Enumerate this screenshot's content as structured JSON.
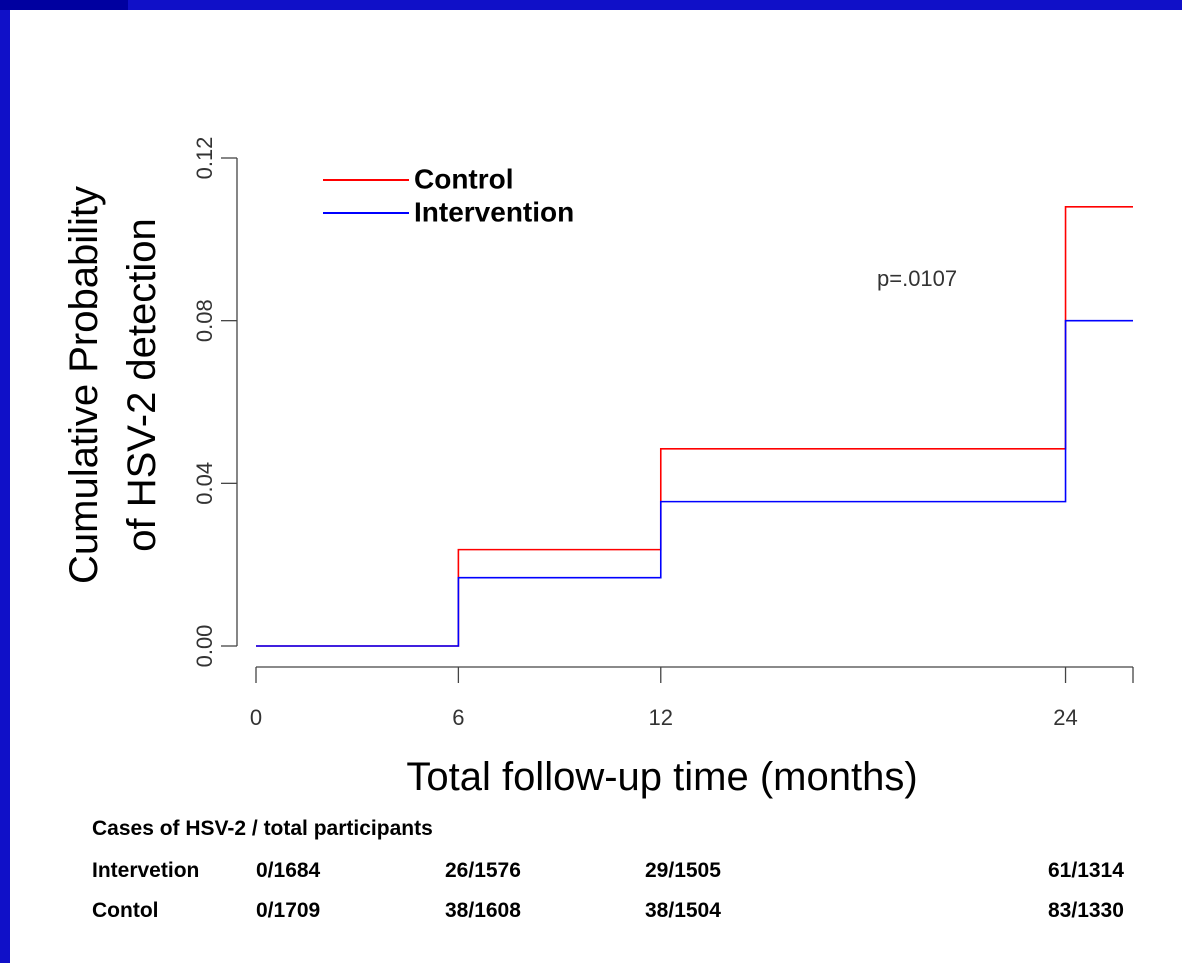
{
  "colors": {
    "frame": "#1010c8",
    "control": "#ff0000",
    "intervention": "#0000ff"
  },
  "chart_data": {
    "type": "line",
    "subtype": "step",
    "xlabel": "Total follow-up time (months)",
    "ylabel_lines": [
      "Cumulative Probability",
      "of HSV-2 detection"
    ],
    "xlim": [
      0,
      26
    ],
    "ylim": [
      0,
      0.12
    ],
    "x_ticks": [
      0,
      6,
      12,
      24
    ],
    "x_tick_labels": [
      "0",
      "6",
      "12",
      "24"
    ],
    "y_ticks": [
      0,
      0.04,
      0.08,
      0.12
    ],
    "y_tick_labels": [
      "0.00",
      "0.04",
      "0.08",
      "0.12"
    ],
    "series": [
      {
        "name": "Control",
        "color": "#ff0000",
        "x": [
          0,
          6,
          12,
          24,
          26
        ],
        "y": [
          0,
          0.0237,
          0.0485,
          0.108,
          0.108
        ]
      },
      {
        "name": "Intervention",
        "color": "#0000ff",
        "x": [
          0,
          6,
          12,
          24,
          26
        ],
        "y": [
          0,
          0.0168,
          0.0355,
          0.08,
          0.08
        ]
      }
    ],
    "legend_position": "top-left",
    "annotation": "p=.0107",
    "grid": false
  },
  "risk_table": {
    "title": "Cases of HSV-2 / total participants",
    "rows": [
      {
        "label": "Intervetion",
        "values": [
          "0/1684",
          "26/1576",
          "29/1505",
          "61/1314"
        ]
      },
      {
        "label": "Contol",
        "values": [
          "0/1709",
          "38/1608",
          "38/1504",
          "83/1330"
        ]
      }
    ]
  }
}
